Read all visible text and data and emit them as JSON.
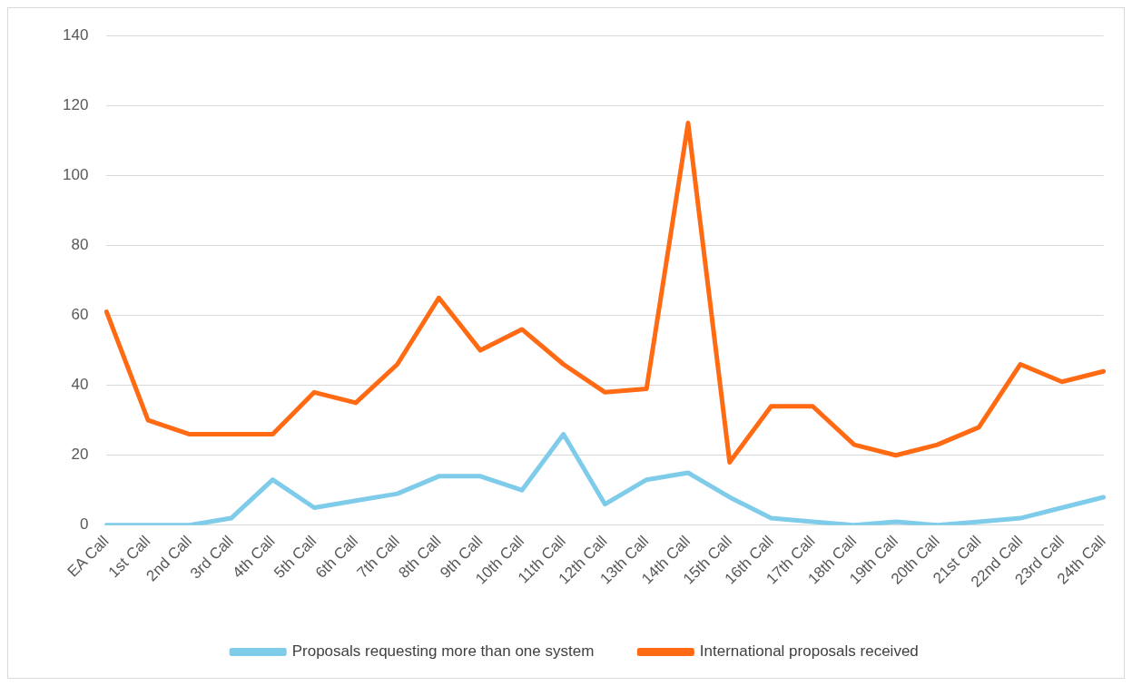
{
  "chart_data": {
    "type": "line",
    "categories": [
      "EA Call",
      "1st Call",
      "2nd Call",
      "3rd Call",
      "4th Call",
      "5th Call",
      "6th Call",
      "7th Call",
      "8th Call",
      "9th Call",
      "10th Call",
      "11th Call",
      "12th Call",
      "13th Call",
      "14th Call",
      "15th Call",
      "16th Call",
      "17th Call",
      "18th Call",
      "19th Call",
      "20th Call",
      "21st Call",
      "22nd Call",
      "23rd Call",
      "24th Call"
    ],
    "series": [
      {
        "name": "Proposals requesting more than one system",
        "color": "#7ecbea",
        "values": [
          0,
          0,
          0,
          2,
          13,
          5,
          7,
          9,
          14,
          14,
          10,
          26,
          6,
          13,
          15,
          8,
          2,
          1,
          0,
          1,
          0,
          1,
          2,
          5,
          8
        ]
      },
      {
        "name": "International proposals received",
        "color": "#ff6a13",
        "values": [
          61,
          30,
          26,
          26,
          26,
          38,
          35,
          46,
          65,
          50,
          56,
          46,
          38,
          39,
          115,
          18,
          34,
          34,
          23,
          20,
          23,
          28,
          46,
          41,
          44
        ]
      }
    ],
    "ylim": [
      0,
      140
    ],
    "yticks": [
      0,
      20,
      40,
      60,
      80,
      100,
      120,
      140
    ],
    "grid": "y",
    "legend": "bottom",
    "marker": "none"
  }
}
